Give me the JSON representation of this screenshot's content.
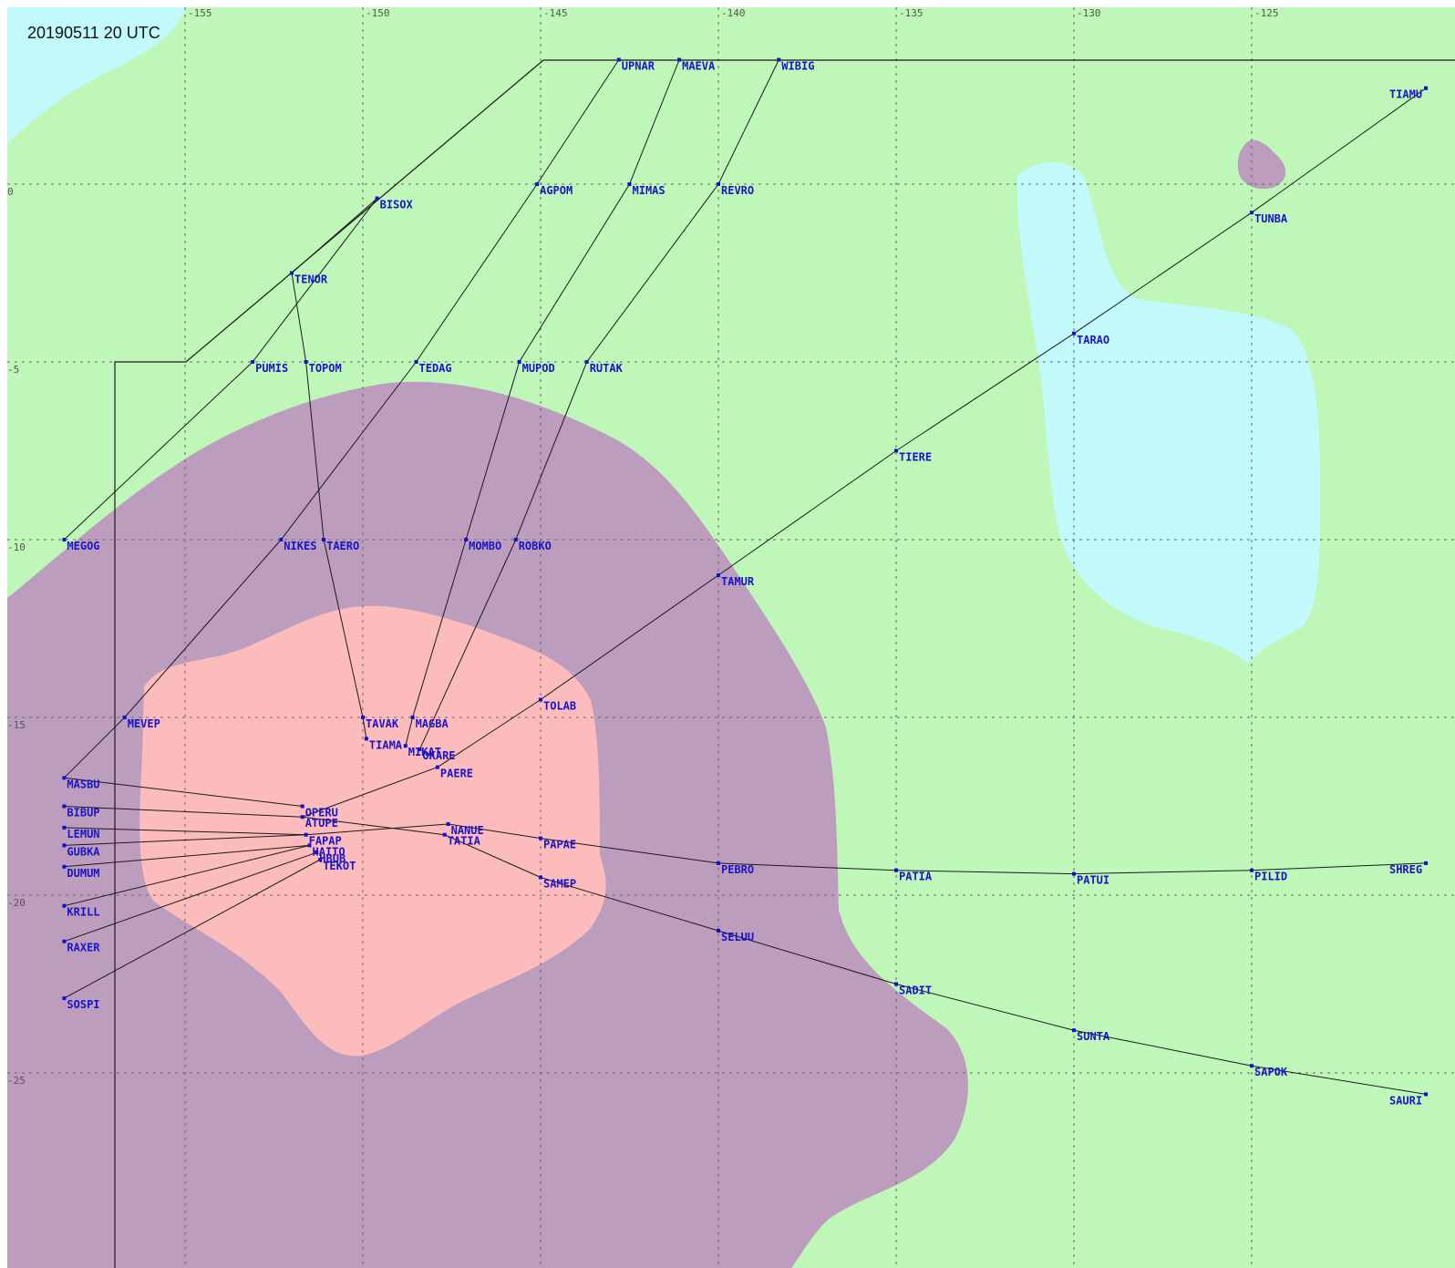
{
  "timestamp": "20190511 20 UTC",
  "colors": {
    "background": "#bff7b9",
    "cyan_region": "#c2fafb",
    "purple_region": "#bc9dbd",
    "pink_region": "#fcbcbc",
    "route_line": "#1a1a1a",
    "waypoint": "#1a14c8"
  },
  "lon_ticks": [
    "-155",
    "-150",
    "-145",
    "-140",
    "-135",
    "-130",
    "-125"
  ],
  "lat_ticks": [
    "0",
    "-5",
    "-10",
    "-15",
    "-20",
    "-25"
  ],
  "waypoints": [
    {
      "name": "UPNAR",
      "lon": -142.8,
      "lat": 3.5
    },
    {
      "name": "MAEVA",
      "lon": -141.1,
      "lat": 3.5
    },
    {
      "name": "WIBIG",
      "lon": -138.3,
      "lat": 3.5
    },
    {
      "name": "TIAMU",
      "lon": -120.1,
      "lat": 2.7
    },
    {
      "name": "BISOX",
      "lon": -149.6,
      "lat": -0.4
    },
    {
      "name": "AGPOM",
      "lon": -145.1,
      "lat": 0.0
    },
    {
      "name": "MIMAS",
      "lon": -142.5,
      "lat": 0.0
    },
    {
      "name": "REVRO",
      "lon": -140.0,
      "lat": 0.0
    },
    {
      "name": "TUNBA",
      "lon": -125.0,
      "lat": -0.8
    },
    {
      "name": "TENOR",
      "lon": -152.0,
      "lat": -2.5
    },
    {
      "name": "TARAO",
      "lon": -130.0,
      "lat": -4.2
    },
    {
      "name": "PUMIS",
      "lon": -153.1,
      "lat": -5.0
    },
    {
      "name": "TOPOM",
      "lon": -151.6,
      "lat": -5.0
    },
    {
      "name": "TEDAG",
      "lon": -148.5,
      "lat": -5.0
    },
    {
      "name": "MUPOD",
      "lon": -145.6,
      "lat": -5.0
    },
    {
      "name": "RUTAK",
      "lon": -143.7,
      "lat": -5.0
    },
    {
      "name": "TIERE",
      "lon": -135.0,
      "lat": -7.5
    },
    {
      "name": "MEGOG",
      "lon": -158.4,
      "lat": -10.0
    },
    {
      "name": "NIKES",
      "lon": -152.3,
      "lat": -10.0
    },
    {
      "name": "TAERO",
      "lon": -151.1,
      "lat": -10.0
    },
    {
      "name": "MOMBO",
      "lon": -147.1,
      "lat": -10.0
    },
    {
      "name": "ROBKO",
      "lon": -145.7,
      "lat": -10.0
    },
    {
      "name": "TAMUR",
      "lon": -140.0,
      "lat": -11.0
    },
    {
      "name": "TOLAB",
      "lon": -145.0,
      "lat": -14.5
    },
    {
      "name": "MEVEP",
      "lon": -156.7,
      "lat": -15.0
    },
    {
      "name": "TAVAK",
      "lon": -150.0,
      "lat": -15.0
    },
    {
      "name": "MAGBA",
      "lon": -148.6,
      "lat": -15.0
    },
    {
      "name": "TIAMA",
      "lon": -149.9,
      "lat": -15.6
    },
    {
      "name": "MIKAT",
      "lon": -148.8,
      "lat": -15.8
    },
    {
      "name": "OKARE",
      "lon": -148.4,
      "lat": -15.9
    },
    {
      "name": "PAERE",
      "lon": -147.9,
      "lat": -16.4
    },
    {
      "name": "MASBU",
      "lon": -158.4,
      "lat": -16.7
    },
    {
      "name": "OPERU",
      "lon": -151.7,
      "lat": -17.5
    },
    {
      "name": "BIBUP",
      "lon": -158.4,
      "lat": -17.5
    },
    {
      "name": "ATUPE",
      "lon": -151.7,
      "lat": -17.8
    },
    {
      "name": "NANUE",
      "lon": -147.6,
      "lat": -18.0
    },
    {
      "name": "LEMUN",
      "lon": -158.4,
      "lat": -18.1
    },
    {
      "name": "TATIA",
      "lon": -147.7,
      "lat": -18.3
    },
    {
      "name": "PAPAE",
      "lon": -145.0,
      "lat": -18.4
    },
    {
      "name": "FAPAP",
      "lon": -151.6,
      "lat": -18.3
    },
    {
      "name": "GUBKA",
      "lon": -158.4,
      "lat": -18.6
    },
    {
      "name": "HAITO",
      "lon": -151.5,
      "lat": -18.6
    },
    {
      "name": "HBUB",
      "lon": -151.3,
      "lat": -18.8
    },
    {
      "name": "TEKOT",
      "lon": -151.2,
      "lat": -19.0
    },
    {
      "name": "DUMUM",
      "lon": -158.4,
      "lat": -19.2
    },
    {
      "name": "SAMEP",
      "lon": -145.0,
      "lat": -19.5
    },
    {
      "name": "PEBRO",
      "lon": -140.0,
      "lat": -19.1
    },
    {
      "name": "PATIA",
      "lon": -135.0,
      "lat": -19.3
    },
    {
      "name": "PATUI",
      "lon": -130.0,
      "lat": -19.4
    },
    {
      "name": "PILID",
      "lon": -125.0,
      "lat": -19.3
    },
    {
      "name": "SHREG",
      "lon": -120.1,
      "lat": -19.1
    },
    {
      "name": "KRILL",
      "lon": -158.4,
      "lat": -20.3
    },
    {
      "name": "SELUU",
      "lon": -140.0,
      "lat": -21.0
    },
    {
      "name": "RAXER",
      "lon": -158.4,
      "lat": -21.3
    },
    {
      "name": "SADIT",
      "lon": -135.0,
      "lat": -22.5
    },
    {
      "name": "SOSPI",
      "lon": -158.4,
      "lat": -22.9
    },
    {
      "name": "SUNTA",
      "lon": -130.0,
      "lat": -23.8
    },
    {
      "name": "SAPOK",
      "lon": -125.0,
      "lat": -24.8
    },
    {
      "name": "SAURI",
      "lon": -120.1,
      "lat": -25.6
    }
  ]
}
